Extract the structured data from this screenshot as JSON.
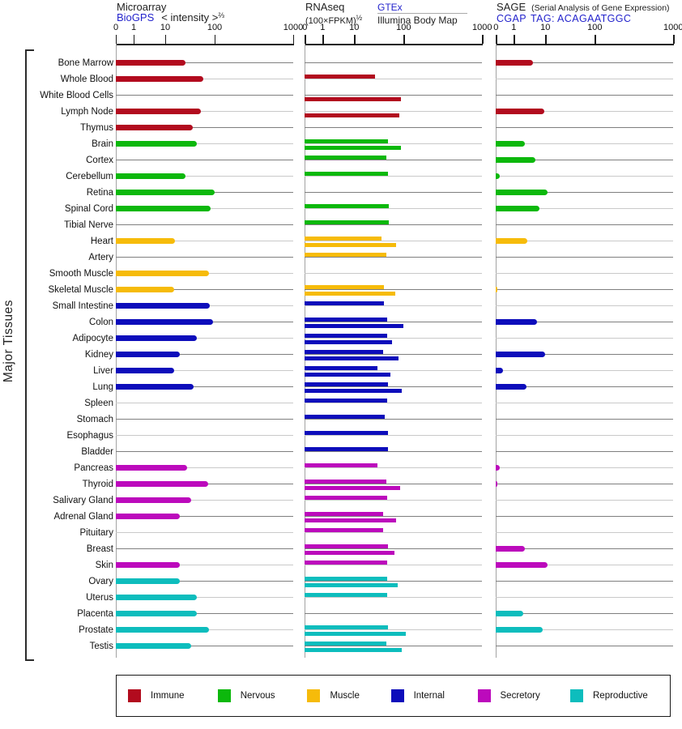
{
  "header": {
    "panel1": {
      "title": "Microarray",
      "link": "BioGPS",
      "subtitle": "< intensity >",
      "exponent": "⅔"
    },
    "panel2": {
      "title": "RNAseq",
      "link": "GTEx",
      "formula": "(100×FPKM)",
      "exponent": "½",
      "subtitle2": "Illumina Body Map"
    },
    "panel3": {
      "title": "SAGE",
      "note": "(Serial Analysis of Gene Expression)",
      "link": "CGAP",
      "tag_text": "TAG: ACAGAATGGC"
    }
  },
  "y_axis_label": "Major Tissues",
  "axis_ticks": [
    "0",
    "1",
    "10",
    "100",
    "1000"
  ],
  "colors": {
    "immune": "#b20b1e",
    "nervous": "#0cb80c",
    "muscle": "#f6bb0a",
    "internal": "#0d0dbb",
    "secretory": "#bc0abc",
    "reproductive": "#0dbdbd",
    "row_line_dark": "#7f7f7f",
    "row_line_light": "#c9c9c9",
    "link_blue": "#2323cc"
  },
  "legend": [
    {
      "label": "Immune",
      "category": "immune"
    },
    {
      "label": "Nervous",
      "category": "nervous"
    },
    {
      "label": "Muscle",
      "category": "muscle"
    },
    {
      "label": "Internal",
      "category": "internal"
    },
    {
      "label": "Secretory",
      "category": "secretory"
    },
    {
      "label": "Reproductive",
      "category": "reproductive"
    }
  ],
  "chart_data": {
    "type": "bar",
    "orientation": "horizontal",
    "scale": "power-log (ticks 0,1,10,100,1000)",
    "panels": [
      {
        "id": "microarray",
        "title": "Microarray BioGPS",
        "ticks": [
          0,
          1,
          10,
          100,
          1000
        ]
      },
      {
        "id": "rnaseq",
        "title": "RNAseq GTEx / Illumina Body Map",
        "ticks": [
          0,
          1,
          10,
          100,
          1000
        ]
      },
      {
        "id": "sage",
        "title": "SAGE CGAP",
        "ticks": [
          0,
          1,
          10,
          100,
          1000
        ]
      }
    ],
    "tissues": [
      {
        "name": "Bone Marrow",
        "category": "immune",
        "microarray": 26,
        "gtex": null,
        "illumina": null,
        "sage": 4
      },
      {
        "name": "Whole Blood",
        "category": "immune",
        "microarray": 58,
        "gtex": 26,
        "illumina": null,
        "sage": null
      },
      {
        "name": "White Blood Cells",
        "category": "immune",
        "microarray": null,
        "gtex": null,
        "illumina": 88,
        "sage": null
      },
      {
        "name": "Lymph Node",
        "category": "immune",
        "microarray": 52,
        "gtex": null,
        "illumina": 83,
        "sage": 9
      },
      {
        "name": "Thymus",
        "category": "immune",
        "microarray": 36,
        "gtex": null,
        "illumina": null,
        "sage": null
      },
      {
        "name": "Brain",
        "category": "nervous",
        "microarray": 43,
        "gtex": 48,
        "illumina": 88,
        "sage": 2.3
      },
      {
        "name": "Cortex",
        "category": "nervous",
        "microarray": null,
        "gtex": 44,
        "illumina": null,
        "sage": 4.8
      },
      {
        "name": "Cerebellum",
        "category": "nervous",
        "microarray": 26,
        "gtex": 48,
        "illumina": null,
        "sage": 0.2
      },
      {
        "name": "Retina",
        "category": "nervous",
        "microarray": 100,
        "gtex": null,
        "illumina": null,
        "sage": 11
      },
      {
        "name": "Spinal Cord",
        "category": "nervous",
        "microarray": 82,
        "gtex": 51,
        "illumina": null,
        "sage": 6.5
      },
      {
        "name": "Tibial Nerve",
        "category": "nervous",
        "microarray": null,
        "gtex": 51,
        "illumina": null,
        "sage": null
      },
      {
        "name": "Heart",
        "category": "muscle",
        "microarray": 16,
        "gtex": 36,
        "illumina": 70,
        "sage": 2.7
      },
      {
        "name": "Artery",
        "category": "muscle",
        "microarray": null,
        "gtex": 44,
        "illumina": null,
        "sage": null
      },
      {
        "name": "Smooth Muscle",
        "category": "muscle",
        "microarray": 77,
        "gtex": null,
        "illumina": null,
        "sage": null
      },
      {
        "name": "Skeletal Muscle",
        "category": "muscle",
        "microarray": 15,
        "gtex": 40,
        "illumina": 68,
        "sage": 0.1
      },
      {
        "name": "Small Intestine",
        "category": "internal",
        "microarray": 80,
        "gtex": 40,
        "illumina": null,
        "sage": null
      },
      {
        "name": "Colon",
        "category": "internal",
        "microarray": 93,
        "gtex": 46,
        "illumina": 100,
        "sage": 5.5
      },
      {
        "name": "Adipocyte",
        "category": "internal",
        "microarray": 43,
        "gtex": 46,
        "illumina": 58,
        "sage": null
      },
      {
        "name": "Kidney",
        "category": "internal",
        "microarray": 20,
        "gtex": 39,
        "illumina": 79,
        "sage": 10
      },
      {
        "name": "Liver",
        "category": "internal",
        "microarray": 15,
        "gtex": 29,
        "illumina": 54,
        "sage": 0.4
      },
      {
        "name": "Lung",
        "category": "internal",
        "microarray": 38,
        "gtex": 48,
        "illumina": 93,
        "sage": 2.6
      },
      {
        "name": "Spleen",
        "category": "internal",
        "microarray": null,
        "gtex": 46,
        "illumina": null,
        "sage": null
      },
      {
        "name": "Stomach",
        "category": "internal",
        "microarray": null,
        "gtex": 41,
        "illumina": null,
        "sage": null
      },
      {
        "name": "Esophagus",
        "category": "internal",
        "microarray": null,
        "gtex": 48,
        "illumina": null,
        "sage": null
      },
      {
        "name": "Bladder",
        "category": "internal",
        "microarray": null,
        "gtex": 49,
        "illumina": null,
        "sage": null
      },
      {
        "name": "Pancreas",
        "category": "secretory",
        "microarray": 28,
        "gtex": 29,
        "illumina": null,
        "sage": 0.2
      },
      {
        "name": "Thyroid",
        "category": "secretory",
        "microarray": 74,
        "gtex": 45,
        "illumina": 84,
        "sage": 0.1
      },
      {
        "name": "Salivary Gland",
        "category": "secretory",
        "microarray": 33,
        "gtex": 46,
        "illumina": null,
        "sage": null
      },
      {
        "name": "Adrenal Gland",
        "category": "secretory",
        "microarray": 20,
        "gtex": 38,
        "illumina": 70,
        "sage": null
      },
      {
        "name": "Pituitary",
        "category": "secretory",
        "microarray": null,
        "gtex": 39,
        "illumina": null,
        "sage": null
      },
      {
        "name": "Breast",
        "category": "secretory",
        "microarray": null,
        "gtex": 48,
        "illumina": 66,
        "sage": 2.3
      },
      {
        "name": "Skin",
        "category": "secretory",
        "microarray": 20,
        "gtex": 46,
        "illumina": null,
        "sage": 11
      },
      {
        "name": "Ovary",
        "category": "reproductive",
        "microarray": 20,
        "gtex": 46,
        "illumina": 75,
        "sage": null
      },
      {
        "name": "Uterus",
        "category": "reproductive",
        "microarray": 44,
        "gtex": 46,
        "illumina": null,
        "sage": null
      },
      {
        "name": "Placenta",
        "category": "reproductive",
        "microarray": 43,
        "gtex": null,
        "illumina": null,
        "sage": 2
      },
      {
        "name": "Prostate",
        "category": "reproductive",
        "microarray": 77,
        "gtex": 48,
        "illumina": 107,
        "sage": 8
      },
      {
        "name": "Testis",
        "category": "reproductive",
        "microarray": 34,
        "gtex": 44,
        "illumina": 93,
        "sage": null
      }
    ]
  }
}
